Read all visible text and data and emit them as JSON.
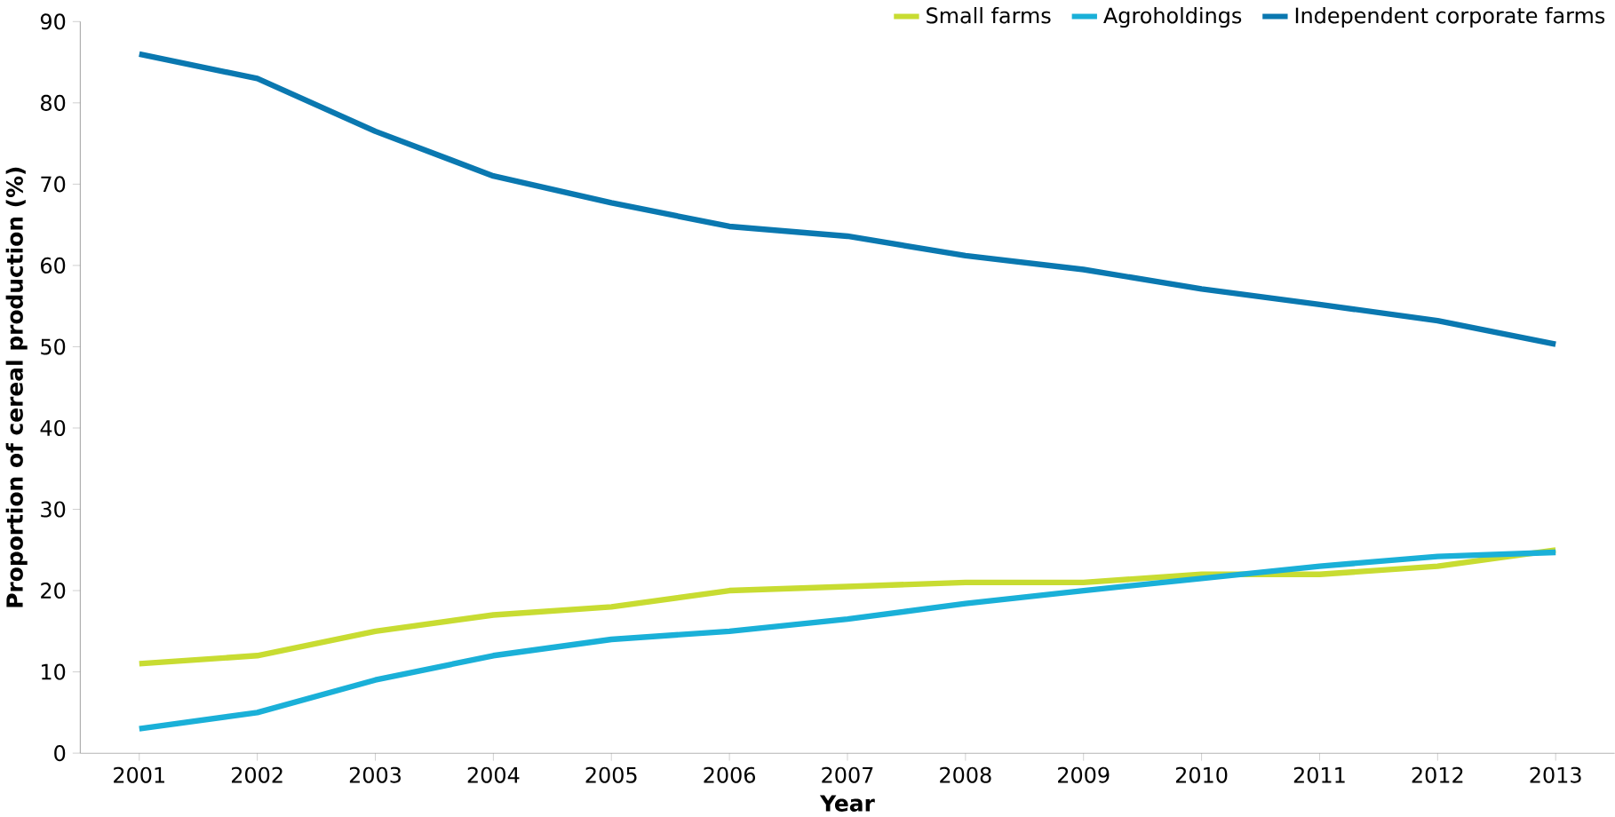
{
  "chart_data": {
    "type": "line",
    "xlabel": "Year",
    "ylabel": "Proportion of cereal production (%)",
    "categories": [
      "2001",
      "2002",
      "2003",
      "2004",
      "2005",
      "2006",
      "2007",
      "2008",
      "2009",
      "2010",
      "2011",
      "2012",
      "2013"
    ],
    "series": [
      {
        "name": "Small farms",
        "color": "#c8dc32",
        "values": [
          11,
          12,
          15,
          17,
          18,
          20,
          20.5,
          21,
          21,
          22,
          22,
          23,
          25
        ]
      },
      {
        "name": "Agroholdings",
        "color": "#1ab0d8",
        "values": [
          3,
          5,
          9,
          12,
          14,
          15,
          16.5,
          18.4,
          20,
          21.5,
          23,
          24.2,
          24.7
        ]
      },
      {
        "name": "Independent corporate farms",
        "color": "#0a78b0",
        "values": [
          86,
          83,
          76.5,
          71,
          67.7,
          64.8,
          63.6,
          61.2,
          59.5,
          57.1,
          55.2,
          53.2,
          50.3
        ]
      }
    ],
    "ylim": [
      0,
      90
    ],
    "yticks": [
      0,
      10,
      20,
      30,
      40,
      50,
      60,
      70,
      80,
      90
    ],
    "grid": false,
    "legend": "top right",
    "marker": "none",
    "line_style": "solid"
  }
}
